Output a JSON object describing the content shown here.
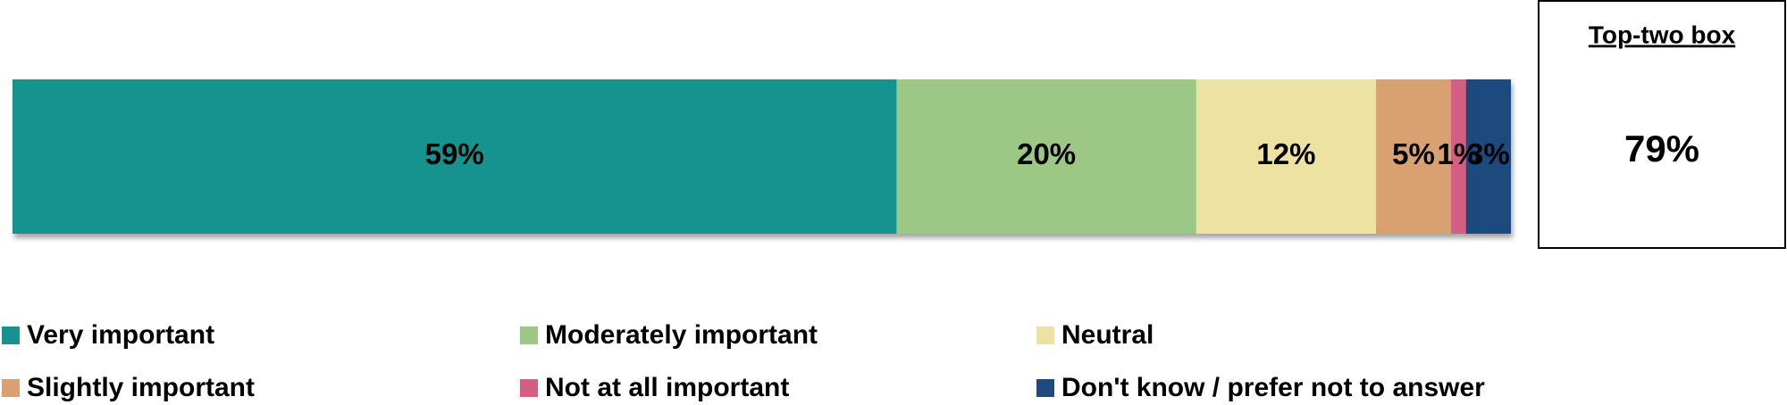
{
  "chart_data": {
    "type": "stacked_bar",
    "series": [
      {
        "name": "Very important",
        "color": "#17928f",
        "values": [
          59
        ],
        "value_labels": [
          "59%"
        ]
      },
      {
        "name": "Moderately important",
        "color": "#9dc784",
        "values": [
          20
        ],
        "value_labels": [
          "20%"
        ]
      },
      {
        "name": "Neutral",
        "color": "#ede2a1",
        "values": [
          12
        ],
        "value_labels": [
          "12%"
        ]
      },
      {
        "name": "Slightly important",
        "color": "#d9a072",
        "values": [
          5
        ],
        "value_labels": [
          "5%"
        ]
      },
      {
        "name": "Not at all important",
        "color": "#d35f85",
        "values": [
          1
        ],
        "value_labels": [
          "1%"
        ]
      },
      {
        "name": "Don't know / prefer not to answer",
        "color": "#1f4a7e",
        "values": [
          3
        ],
        "value_labels": [
          "3%"
        ]
      }
    ],
    "summary": {
      "title": "Top-two box",
      "value": 79,
      "label": "79%"
    },
    "legend": "bottom"
  }
}
